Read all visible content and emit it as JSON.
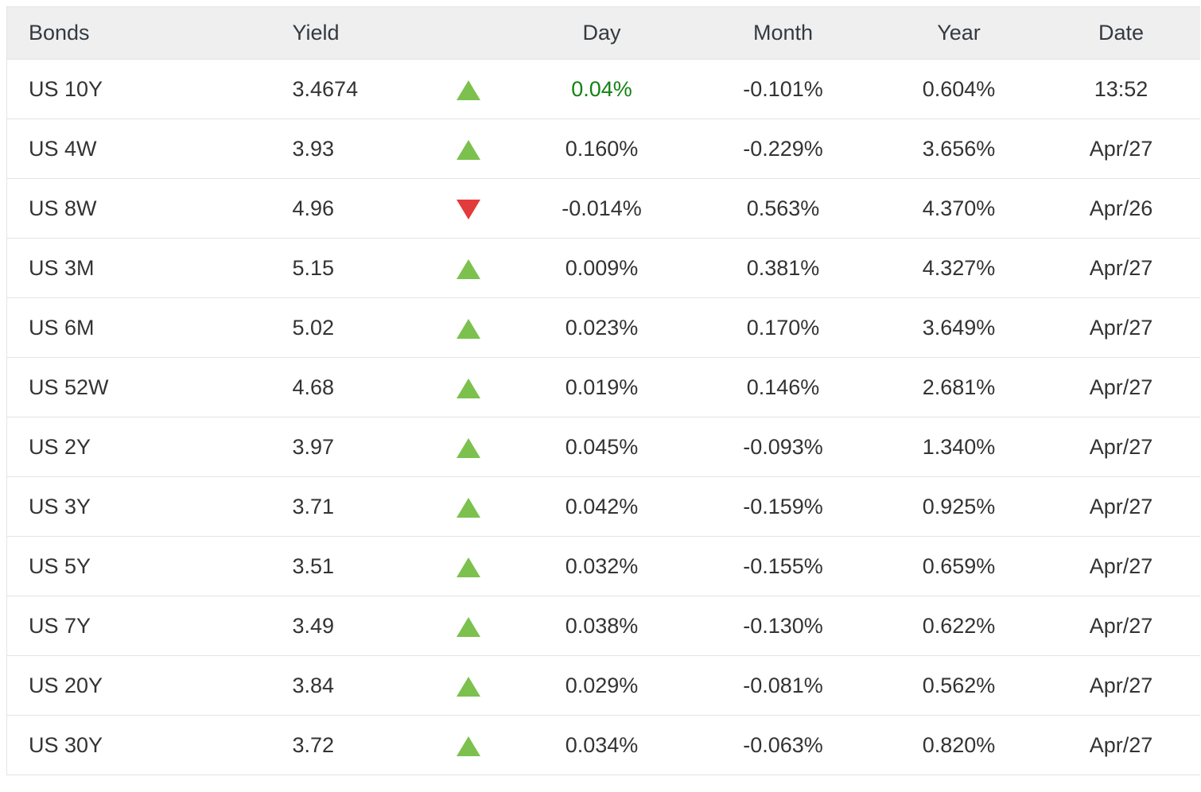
{
  "colors": {
    "up_triangle": "#7cc14e",
    "down_triangle": "#e23b3b",
    "day_highlight_text": "#128312",
    "header_background": "#efefef",
    "row_text": "#333333"
  },
  "table": {
    "columns": {
      "bonds": "Bonds",
      "yield": "Yield",
      "day": "Day",
      "month": "Month",
      "year": "Year",
      "date": "Date"
    },
    "rows": [
      {
        "bond": "US 10Y",
        "yield": "3.4674",
        "direction": "up",
        "day": "0.04%",
        "day_highlight": true,
        "month": "-0.101%",
        "year": "0.604%",
        "date": "13:52"
      },
      {
        "bond": "US 4W",
        "yield": "3.93",
        "direction": "up",
        "day": "0.160%",
        "day_highlight": false,
        "month": "-0.229%",
        "year": "3.656%",
        "date": "Apr/27"
      },
      {
        "bond": "US 8W",
        "yield": "4.96",
        "direction": "down",
        "day": "-0.014%",
        "day_highlight": false,
        "month": "0.563%",
        "year": "4.370%",
        "date": "Apr/26"
      },
      {
        "bond": "US 3M",
        "yield": "5.15",
        "direction": "up",
        "day": "0.009%",
        "day_highlight": false,
        "month": "0.381%",
        "year": "4.327%",
        "date": "Apr/27"
      },
      {
        "bond": "US 6M",
        "yield": "5.02",
        "direction": "up",
        "day": "0.023%",
        "day_highlight": false,
        "month": "0.170%",
        "year": "3.649%",
        "date": "Apr/27"
      },
      {
        "bond": "US 52W",
        "yield": "4.68",
        "direction": "up",
        "day": "0.019%",
        "day_highlight": false,
        "month": "0.146%",
        "year": "2.681%",
        "date": "Apr/27"
      },
      {
        "bond": "US 2Y",
        "yield": "3.97",
        "direction": "up",
        "day": "0.045%",
        "day_highlight": false,
        "month": "-0.093%",
        "year": "1.340%",
        "date": "Apr/27"
      },
      {
        "bond": "US 3Y",
        "yield": "3.71",
        "direction": "up",
        "day": "0.042%",
        "day_highlight": false,
        "month": "-0.159%",
        "year": "0.925%",
        "date": "Apr/27"
      },
      {
        "bond": "US 5Y",
        "yield": "3.51",
        "direction": "up",
        "day": "0.032%",
        "day_highlight": false,
        "month": "-0.155%",
        "year": "0.659%",
        "date": "Apr/27"
      },
      {
        "bond": "US 7Y",
        "yield": "3.49",
        "direction": "up",
        "day": "0.038%",
        "day_highlight": false,
        "month": "-0.130%",
        "year": "0.622%",
        "date": "Apr/27"
      },
      {
        "bond": "US 20Y",
        "yield": "3.84",
        "direction": "up",
        "day": "0.029%",
        "day_highlight": false,
        "month": "-0.081%",
        "year": "0.562%",
        "date": "Apr/27"
      },
      {
        "bond": "US 30Y",
        "yield": "3.72",
        "direction": "up",
        "day": "0.034%",
        "day_highlight": false,
        "month": "-0.063%",
        "year": "0.820%",
        "date": "Apr/27"
      }
    ]
  }
}
